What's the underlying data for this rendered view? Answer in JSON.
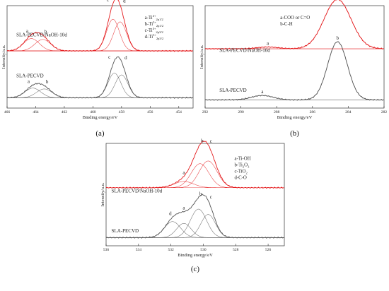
{
  "chart_data": [
    {
      "type": "line",
      "panel_label": "(a)",
      "xlabel": "Binding energy/eV",
      "ylabel": "Intensity/a.u.",
      "xlim": [
        466,
        453
      ],
      "x_reversed": true,
      "x_ticks": [
        466,
        464,
        462,
        460,
        458,
        456,
        454
      ],
      "legend": [
        {
          "key": "a-",
          "sym": "Ti",
          "sup": "4+",
          "sub": "2p1/2"
        },
        {
          "key": "b-",
          "sym": "Ti",
          "sup": "3+",
          "sub": "2p1/2"
        },
        {
          "key": "c-",
          "sym": "Ti",
          "sup": "4+",
          "sub": "2p3/2"
        },
        {
          "key": "d-",
          "sym": "Ti",
          "sup": "3+",
          "sub": "2p3/2"
        }
      ],
      "series": [
        {
          "name": "SLA-PECVD/NaOH-10d",
          "color": "#e41a1c",
          "offset": 0.52,
          "background": 0.06,
          "peaks": [
            {
              "label": "a",
              "center": 464.3,
              "amp": 0.14,
              "width": 0.55
            },
            {
              "label": "b",
              "center": 463.5,
              "amp": 0.13,
              "width": 0.55
            },
            {
              "label": "c",
              "center": 458.6,
              "amp": 0.36,
              "width": 0.45
            },
            {
              "label": "d",
              "center": 458.1,
              "amp": 0.33,
              "width": 0.45
            }
          ]
        },
        {
          "name": "SLA-PECVD",
          "color": "#555555",
          "offset": 0.0,
          "background": 0.04,
          "peaks": [
            {
              "label": "a",
              "center": 464.2,
              "amp": 0.11,
              "width": 0.55
            },
            {
              "label": "b",
              "center": 463.4,
              "amp": 0.1,
              "width": 0.55
            },
            {
              "label": "c",
              "center": 458.5,
              "amp": 0.28,
              "width": 0.45
            },
            {
              "label": "d",
              "center": 458.0,
              "amp": 0.26,
              "width": 0.45
            }
          ]
        }
      ]
    },
    {
      "type": "line",
      "panel_label": "(b)",
      "xlabel": "Binding energy/eV",
      "ylabel": "Intensity/a.u.",
      "xlim": [
        292,
        282
      ],
      "x_reversed": true,
      "x_ticks": [
        292,
        290,
        288,
        286,
        284,
        282
      ],
      "legend": [
        {
          "key": "a-COO or C=O"
        },
        {
          "key": "b-C-H"
        }
      ],
      "series": [
        {
          "name": "SLA-PECVD/NaOH-10d",
          "color": "#e41a1c",
          "offset": 0.58,
          "background": 0.0,
          "peaks": [
            {
              "label": "a",
              "center": 288.5,
              "amp": 0.02,
              "width": 0.6
            },
            {
              "label": "b",
              "center": 284.6,
              "amp": 0.56,
              "width": 0.75
            }
          ]
        },
        {
          "name": "SLA-PECVD",
          "color": "#555555",
          "offset": 0.0,
          "background": 0.0,
          "peaks": [
            {
              "label": "a",
              "center": 288.8,
              "amp": 0.05,
              "width": 0.6
            },
            {
              "label": "b",
              "center": 284.6,
              "amp": 0.66,
              "width": 0.55
            }
          ]
        }
      ]
    },
    {
      "type": "line",
      "panel_label": "(c)",
      "xlabel": "Binding energy/eV",
      "ylabel": "Intensity/a.u.",
      "xlim": [
        536,
        525
      ],
      "x_reversed": true,
      "x_ticks": [
        536,
        534,
        532,
        530,
        528,
        526
      ],
      "legend": [
        {
          "key": "a-Ti-OH"
        },
        {
          "key": "b-",
          "sym": "Ti",
          "sub2": "2",
          "sym2": "O",
          "sub3": "3"
        },
        {
          "key": "c-",
          "sym": "TiO",
          "sub2": "2"
        },
        {
          "key": "d-C-O"
        }
      ],
      "series": [
        {
          "name": "SLA-PECVD/NaOH-10d",
          "color": "#e41a1c",
          "offset": 0.56,
          "background": 0.0,
          "peaks": [
            {
              "label": "a",
              "center": 531.2,
              "amp": 0.07,
              "width": 0.6
            },
            {
              "label": "b",
              "center": 530.2,
              "amp": 0.27,
              "width": 0.55
            },
            {
              "label": "c",
              "center": 529.7,
              "amp": 0.3,
              "width": 0.55
            }
          ]
        },
        {
          "name": "SLA-PECVD",
          "color": "#555555",
          "offset": 0.0,
          "background": 0.0,
          "peaks": [
            {
              "label": "d",
              "center": 531.9,
              "amp": 0.18,
              "width": 0.5
            },
            {
              "label": "a",
              "center": 531.2,
              "amp": 0.16,
              "width": 0.45
            },
            {
              "label": "b",
              "center": 530.3,
              "amp": 0.32,
              "width": 0.5
            },
            {
              "label": "c",
              "center": 529.7,
              "amp": 0.26,
              "width": 0.45
            }
          ]
        }
      ]
    }
  ]
}
